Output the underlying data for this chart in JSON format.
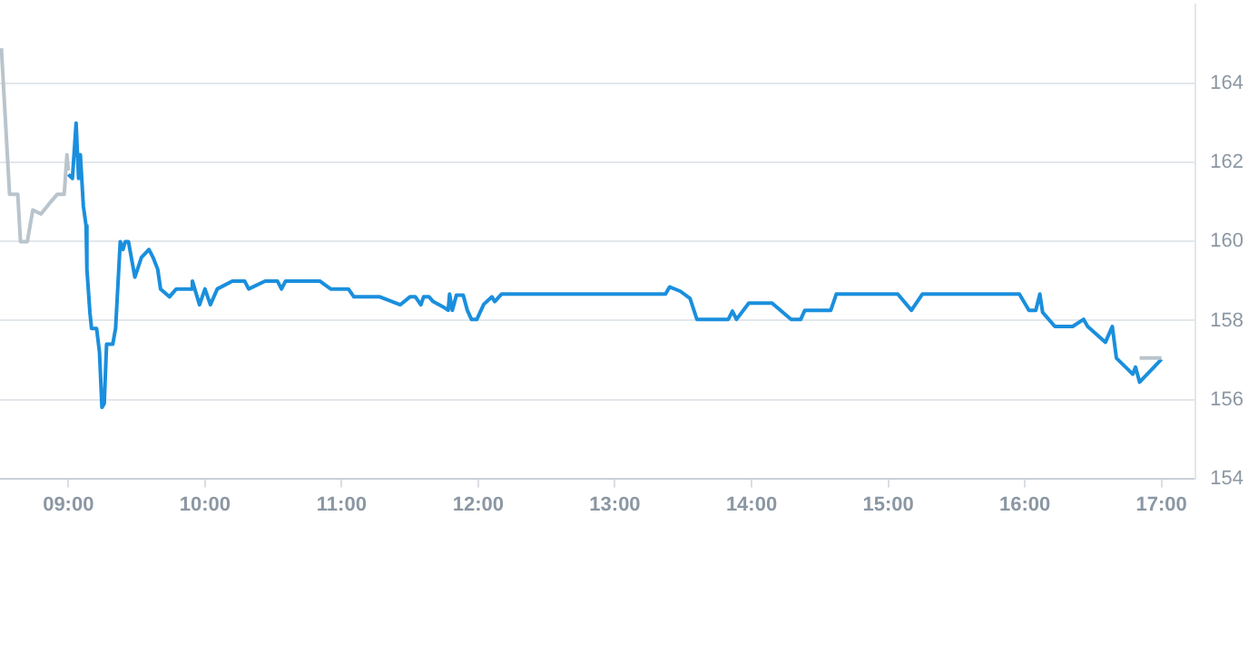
{
  "chart_data": {
    "type": "line",
    "xlim": [
      8.5,
      17.25
    ],
    "xticks": [
      {
        "value": 9,
        "label": "09:00"
      },
      {
        "value": 10,
        "label": "10:00"
      },
      {
        "value": 11,
        "label": "11:00"
      },
      {
        "value": 12,
        "label": "12:00"
      },
      {
        "value": 13,
        "label": "13:00"
      },
      {
        "value": 14,
        "label": "14:00"
      },
      {
        "value": 15,
        "label": "15:00"
      },
      {
        "value": 16,
        "label": "16:00"
      },
      {
        "value": 17,
        "label": "17:00"
      }
    ],
    "ylim": [
      154,
      166
    ],
    "yticks": [
      154,
      156,
      158,
      160,
      162,
      164
    ],
    "grid": "y",
    "legend": false,
    "series": [
      {
        "color": "#b9c4cc",
        "x": [
          8.51,
          8.57,
          8.63,
          8.65,
          8.7,
          8.74,
          8.8,
          8.87,
          8.92,
          8.97,
          8.99,
          9.0,
          9.01,
          16.84,
          17.0
        ],
        "values": [
          164.9,
          161.2,
          161.2,
          160.0,
          160.0,
          160.8,
          160.7,
          161.0,
          161.2,
          161.2,
          162.2,
          161.8,
          null,
          157.05,
          157.05
        ]
      },
      {
        "color": "#1a8fdd",
        "x": [
          9.0,
          9.03,
          9.057,
          9.075,
          9.088,
          9.11,
          9.13,
          9.136,
          9.158,
          9.17,
          9.207,
          9.228,
          9.246,
          9.263,
          9.28,
          9.325,
          9.346,
          9.38,
          9.4,
          9.417,
          9.44,
          9.487,
          9.535,
          9.59,
          9.62,
          9.654,
          9.675,
          9.74,
          9.79,
          9.895,
          9.908,
          9.96,
          10.0,
          10.04,
          10.09,
          10.2,
          10.29,
          10.32,
          10.44,
          10.53,
          10.56,
          10.59,
          10.84,
          10.92,
          11.05,
          11.09,
          11.28,
          11.43,
          11.5,
          11.54,
          11.58,
          11.6,
          11.64,
          11.67,
          11.75,
          11.78,
          11.79,
          11.81,
          11.84,
          11.89,
          11.92,
          11.95,
          11.99,
          12.04,
          12.1,
          12.12,
          12.17,
          13.37,
          13.4,
          13.48,
          13.55,
          13.6,
          13.83,
          13.86,
          13.89,
          13.98,
          14.15,
          14.29,
          14.36,
          14.39,
          14.58,
          14.62,
          15.07,
          15.17,
          15.25,
          15.96,
          16.03,
          16.08,
          16.11,
          16.13,
          16.22,
          16.35,
          16.43,
          16.46,
          16.59,
          16.64,
          16.67,
          16.79,
          16.81,
          16.84,
          17.0
        ],
        "values": [
          161.7,
          161.6,
          163.0,
          161.6,
          162.2,
          160.9,
          160.4,
          159.3,
          158.2,
          157.8,
          157.8,
          157.2,
          155.8,
          155.9,
          157.4,
          157.4,
          157.8,
          160.0,
          159.8,
          160.0,
          160.0,
          159.1,
          159.6,
          159.8,
          159.6,
          159.3,
          158.8,
          158.6,
          158.8,
          158.8,
          159.0,
          158.4,
          158.8,
          158.4,
          158.8,
          159.0,
          159.0,
          158.8,
          159.0,
          159.0,
          158.8,
          159.0,
          159.0,
          158.8,
          158.8,
          158.6,
          158.6,
          158.4,
          158.6,
          158.6,
          158.4,
          158.6,
          158.6,
          158.48,
          158.33,
          158.26,
          158.67,
          158.26,
          158.64,
          158.64,
          158.26,
          158.03,
          158.03,
          158.41,
          158.6,
          158.48,
          158.67,
          158.67,
          158.85,
          158.74,
          158.56,
          158.03,
          158.03,
          158.24,
          158.03,
          158.44,
          158.44,
          158.03,
          158.03,
          158.26,
          158.26,
          158.67,
          158.67,
          158.26,
          158.67,
          158.67,
          158.26,
          158.26,
          158.67,
          158.21,
          157.85,
          157.85,
          158.03,
          157.85,
          157.45,
          157.85,
          157.05,
          156.64,
          156.82,
          156.44,
          157.02
        ]
      }
    ]
  }
}
